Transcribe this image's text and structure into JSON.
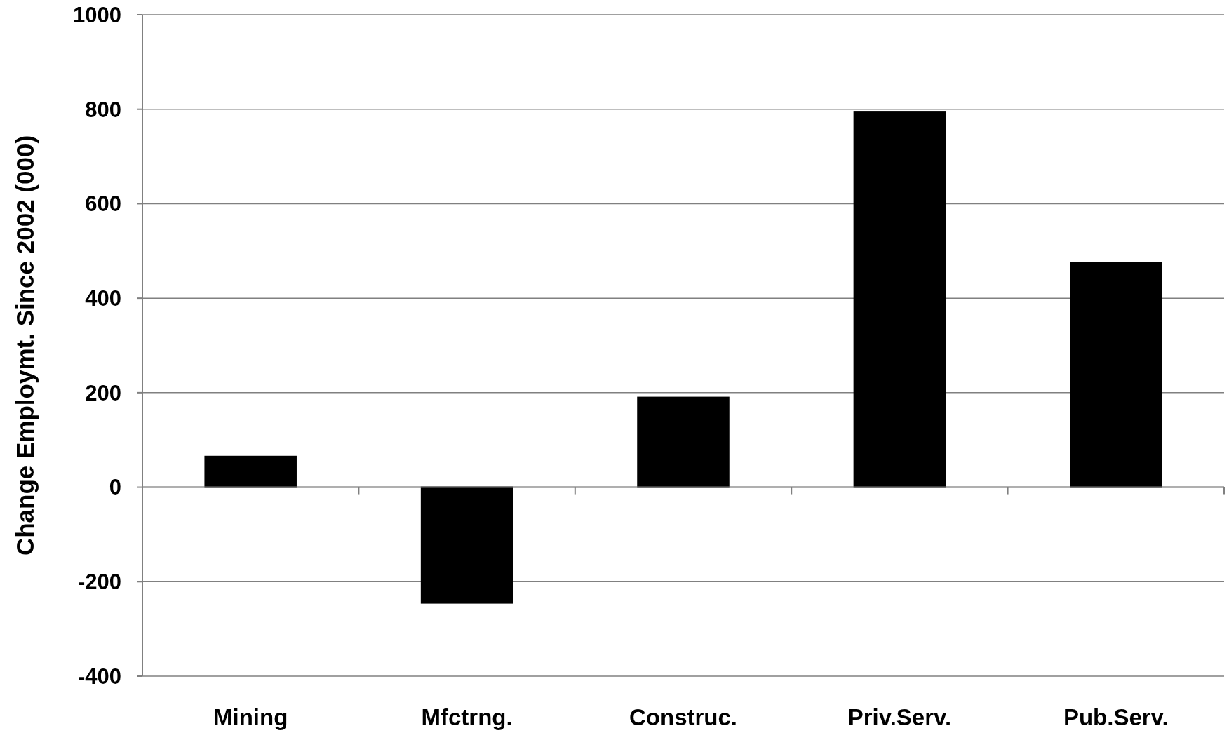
{
  "chart_data": {
    "type": "bar",
    "ylabel": "Change Employmt. Since 2002 (000)",
    "categories": [
      "Mining",
      "Mfctrng.",
      "Construc.",
      "Priv.Serv.",
      "Pub.Serv."
    ],
    "values": [
      65,
      -245,
      190,
      795,
      475
    ],
    "color": "#000000",
    "ylim": [
      -400,
      1000
    ],
    "yticks": [
      -400,
      -200,
      0,
      200,
      400,
      600,
      800,
      1000
    ],
    "grid": "y"
  }
}
